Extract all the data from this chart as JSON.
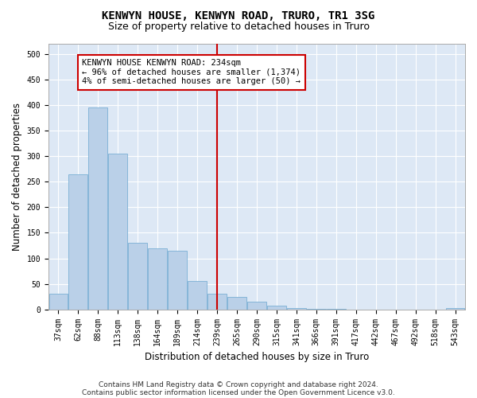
{
  "title": "KENWYN HOUSE, KENWYN ROAD, TRURO, TR1 3SG",
  "subtitle": "Size of property relative to detached houses in Truro",
  "xlabel": "Distribution of detached houses by size in Truro",
  "ylabel": "Number of detached properties",
  "footnote1": "Contains HM Land Registry data © Crown copyright and database right 2024.",
  "footnote2": "Contains public sector information licensed under the Open Government Licence v3.0.",
  "annotation_line1": "KENWYN HOUSE KENWYN ROAD: 234sqm",
  "annotation_line2": "← 96% of detached houses are smaller (1,374)",
  "annotation_line3": "4% of semi-detached houses are larger (50) →",
  "bar_color": "#bad0e8",
  "bar_edge_color": "#7aafd4",
  "vline_color": "#cc0000",
  "vline_bin": 8,
  "annotation_box_edge_color": "#cc0000",
  "background_color": "#dde8f5",
  "categories": [
    "37sqm",
    "62sqm",
    "88sqm",
    "113sqm",
    "138sqm",
    "164sqm",
    "189sqm",
    "214sqm",
    "239sqm",
    "265sqm",
    "290sqm",
    "315sqm",
    "341sqm",
    "366sqm",
    "391sqm",
    "417sqm",
    "442sqm",
    "467sqm",
    "492sqm",
    "518sqm",
    "543sqm"
  ],
  "values": [
    30,
    265,
    395,
    305,
    130,
    120,
    115,
    55,
    30,
    25,
    15,
    8,
    3,
    1,
    1,
    0,
    0,
    0,
    0,
    0,
    3
  ],
  "ylim": [
    0,
    520
  ],
  "yticks": [
    0,
    50,
    100,
    150,
    200,
    250,
    300,
    350,
    400,
    450,
    500
  ],
  "grid_color": "#ffffff",
  "title_fontsize": 10,
  "subtitle_fontsize": 9,
  "axis_label_fontsize": 8.5,
  "tick_fontsize": 7,
  "annotation_fontsize": 7.5,
  "footnote_fontsize": 6.5
}
